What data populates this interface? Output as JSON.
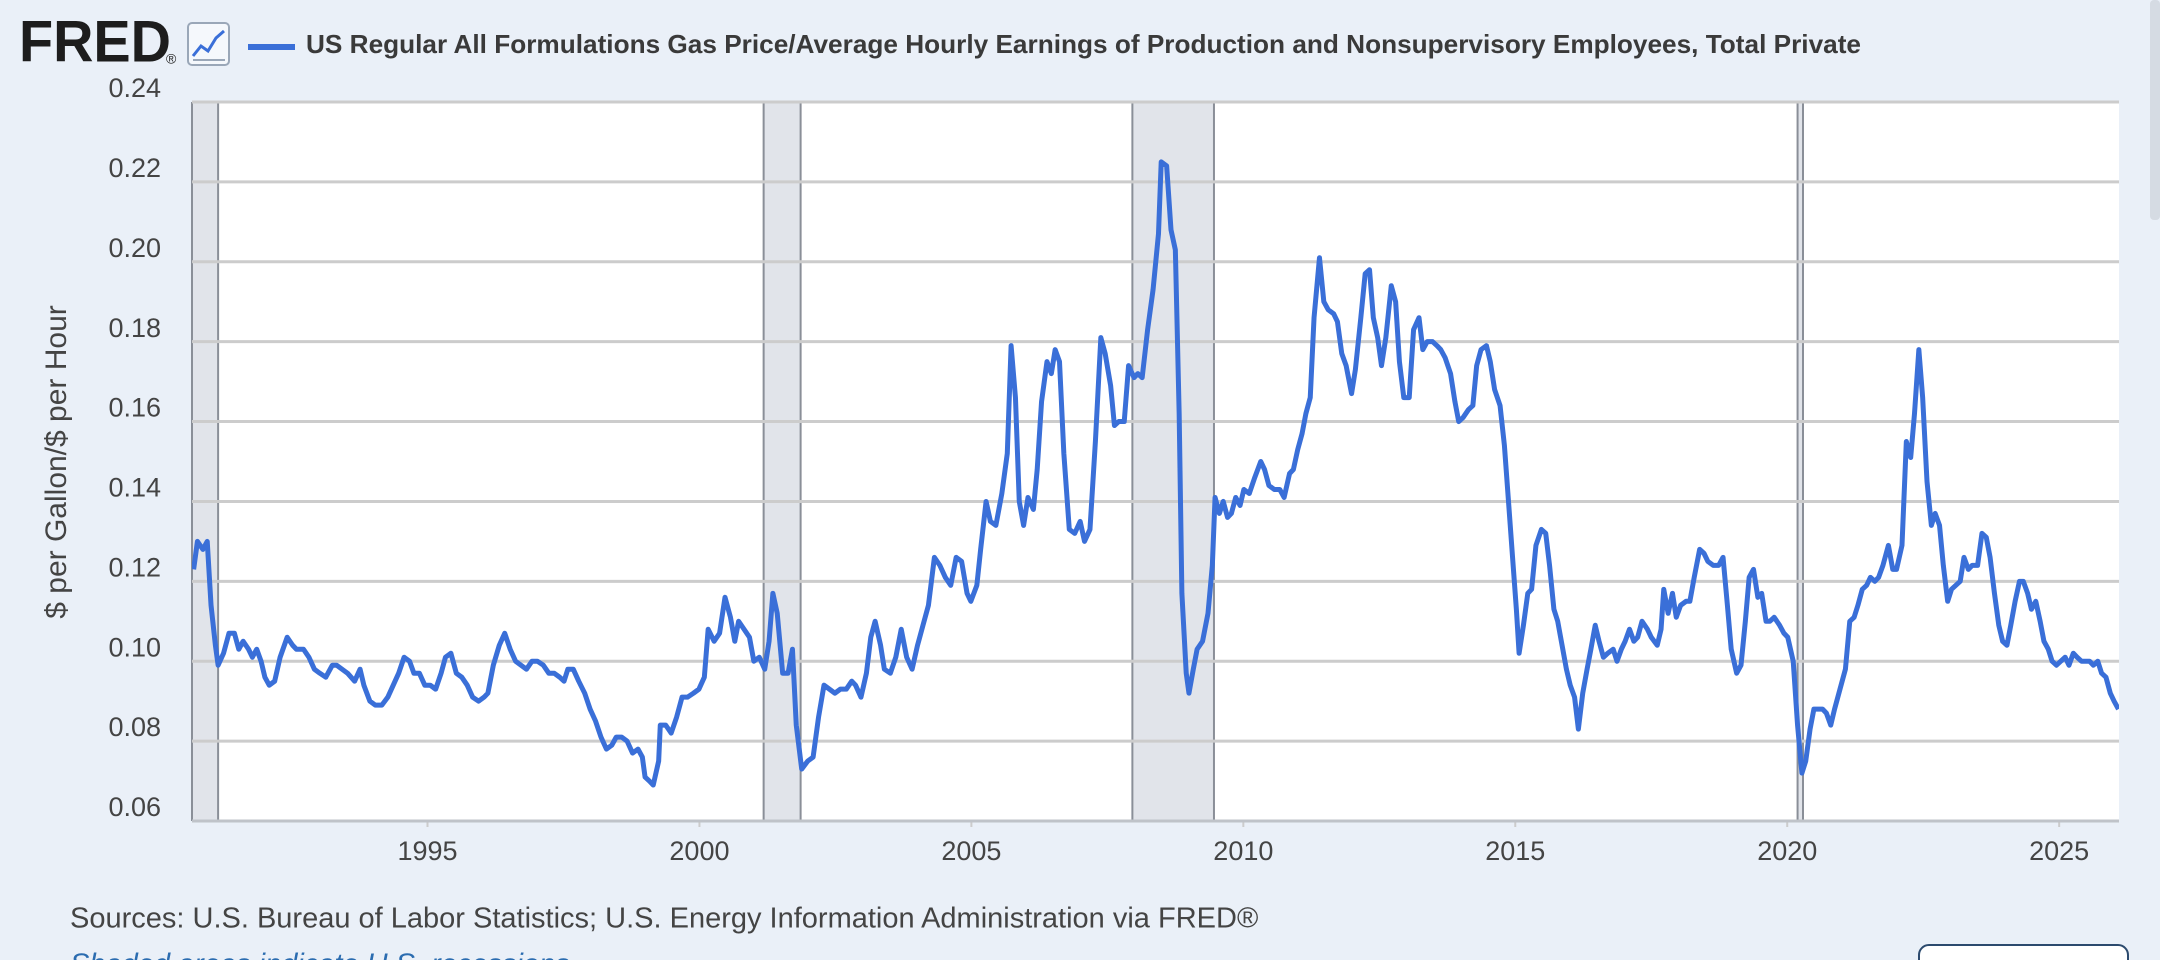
{
  "logo": "FRED",
  "logo_mark": "®",
  "chart_data": {
    "type": "line",
    "y_label": "$ per Gallon/$ per Hour",
    "x": [
      1990.7,
      1990.77,
      1990.87,
      1990.95,
      1991.02,
      1991.1,
      1991.15,
      1991.25,
      1991.35,
      1991.45,
      1991.53,
      1991.61,
      1991.71,
      1991.78,
      1991.86,
      1991.94,
      1992.01,
      1992.09,
      1992.19,
      1992.29,
      1992.42,
      1992.52,
      1992.59,
      1992.72,
      1992.82,
      1992.92,
      1993.02,
      1993.13,
      1993.25,
      1993.33,
      1993.43,
      1993.53,
      1993.66,
      1993.76,
      1993.83,
      1993.94,
      1994.04,
      1994.16,
      1994.27,
      1994.37,
      1994.47,
      1994.57,
      1994.67,
      1994.75,
      1994.85,
      1994.95,
      1995.05,
      1995.15,
      1995.25,
      1995.33,
      1995.43,
      1995.53,
      1995.63,
      1995.73,
      1995.83,
      1995.94,
      1996.04,
      1996.11,
      1996.21,
      1996.32,
      1996.42,
      1996.52,
      1996.62,
      1996.72,
      1996.82,
      1996.92,
      1997.02,
      1997.13,
      1997.23,
      1997.33,
      1997.43,
      1997.51,
      1997.58,
      1997.68,
      1997.78,
      1997.89,
      1997.99,
      1998.09,
      1998.19,
      1998.29,
      1998.39,
      1998.47,
      1998.57,
      1998.67,
      1998.77,
      1998.87,
      1998.95,
      1999.0,
      1999.08,
      1999.15,
      1999.25,
      1999.28,
      1999.38,
      1999.48,
      1999.58,
      1999.68,
      1999.78,
      1999.89,
      1999.99,
      2000.09,
      2000.16,
      2000.27,
      2000.37,
      2000.47,
      2000.57,
      2000.65,
      2000.72,
      2000.82,
      2000.92,
      2001.0,
      2001.1,
      2001.2,
      2001.28,
      2001.35,
      2001.43,
      2001.53,
      2001.63,
      2001.71,
      2001.78,
      2001.88,
      2001.99,
      2002.09,
      2002.19,
      2002.29,
      2002.39,
      2002.49,
      2002.59,
      2002.7,
      2002.8,
      2002.87,
      2002.97,
      2003.07,
      2003.15,
      2003.23,
      2003.33,
      2003.4,
      2003.51,
      2003.61,
      2003.71,
      2003.81,
      2003.91,
      2004.01,
      2004.11,
      2004.21,
      2004.32,
      2004.42,
      2004.52,
      2004.62,
      2004.72,
      2004.82,
      2004.92,
      2004.99,
      2005.1,
      2005.17,
      2005.27,
      2005.35,
      2005.45,
      2005.56,
      2005.66,
      2005.73,
      2005.81,
      2005.88,
      2005.96,
      2006.04,
      2006.14,
      2006.21,
      2006.29,
      2006.39,
      2006.47,
      2006.54,
      2006.62,
      2006.7,
      2006.8,
      2006.9,
      2007.0,
      2007.08,
      2007.18,
      2007.28,
      2007.38,
      2007.46,
      2007.56,
      2007.63,
      2007.71,
      2007.81,
      2007.89,
      2007.99,
      2008.06,
      2008.14,
      2008.24,
      2008.34,
      2008.44,
      2008.49,
      2008.59,
      2008.67,
      2008.75,
      2008.82,
      2008.87,
      2008.95,
      2009.0,
      2009.08,
      2009.15,
      2009.25,
      2009.35,
      2009.43,
      2009.48,
      2009.56,
      2009.63,
      2009.71,
      2009.78,
      2009.86,
      2009.94,
      2010.01,
      2010.11,
      2010.21,
      2010.32,
      2010.39,
      2010.47,
      2010.57,
      2010.67,
      2010.75,
      2010.85,
      2010.92,
      2011.0,
      2011.08,
      2011.15,
      2011.23,
      2011.3,
      2011.4,
      2011.48,
      2011.56,
      2011.66,
      2011.73,
      2011.81,
      2011.89,
      2011.99,
      2012.06,
      2012.16,
      2012.24,
      2012.32,
      2012.39,
      2012.47,
      2012.54,
      2012.62,
      2012.72,
      2012.8,
      2012.87,
      2012.95,
      2013.05,
      2013.13,
      2013.23,
      2013.3,
      2013.38,
      2013.48,
      2013.56,
      2013.63,
      2013.71,
      2013.81,
      2013.89,
      2013.96,
      2014.04,
      2014.14,
      2014.22,
      2014.29,
      2014.37,
      2014.47,
      2014.54,
      2014.62,
      2014.72,
      2014.8,
      2014.87,
      2014.95,
      2015.02,
      2015.07,
      2015.15,
      2015.23,
      2015.3,
      2015.38,
      2015.48,
      2015.56,
      2015.63,
      2015.71,
      2015.78,
      2015.86,
      2015.94,
      2016.01,
      2016.09,
      2016.16,
      2016.24,
      2016.32,
      2016.39,
      2016.47,
      2016.54,
      2016.62,
      2016.7,
      2016.8,
      2016.87,
      2016.95,
      2017.02,
      2017.1,
      2017.18,
      2017.25,
      2017.33,
      2017.43,
      2017.5,
      2017.61,
      2017.68,
      2017.73,
      2017.81,
      2017.89,
      2017.96,
      2018.04,
      2018.14,
      2018.21,
      2018.29,
      2018.39,
      2018.47,
      2018.54,
      2018.64,
      2018.74,
      2018.82,
      2018.9,
      2018.97,
      2019.07,
      2019.15,
      2019.23,
      2019.3,
      2019.38,
      2019.46,
      2019.53,
      2019.61,
      2019.68,
      2019.76,
      2019.86,
      2019.94,
      2020.01,
      2020.11,
      2020.19,
      2020.27,
      2020.34,
      2020.42,
      2020.49,
      2020.57,
      2020.65,
      2020.72,
      2020.8,
      2020.87,
      2020.97,
      2021.07,
      2021.15,
      2021.23,
      2021.3,
      2021.38,
      2021.46,
      2021.53,
      2021.61,
      2021.68,
      2021.76,
      2021.86,
      2021.94,
      2022.01,
      2022.11,
      2022.19,
      2022.27,
      2022.34,
      2022.42,
      2022.49,
      2022.57,
      2022.65,
      2022.72,
      2022.8,
      2022.87,
      2022.95,
      2023.02,
      2023.1,
      2023.18,
      2023.25,
      2023.33,
      2023.4,
      2023.5,
      2023.58,
      2023.66,
      2023.73,
      2023.81,
      2023.89,
      2023.96,
      2024.04,
      2024.11,
      2024.19,
      2024.27,
      2024.34,
      2024.42,
      2024.49,
      2024.57,
      2024.65,
      2024.72,
      2024.8,
      2024.87,
      2024.95,
      2025.03,
      2025.11,
      2025.18,
      2025.26,
      2025.33,
      2025.41,
      2025.48,
      2025.56,
      2025.63,
      2025.71,
      2025.78,
      2025.86,
      2025.94,
      2026.01,
      2026.09
    ],
    "series": [
      {
        "name": "US Regular All Formulations Gas Price/Average Hourly Earnings of Production and Nonsupervisory Employees, Total Private",
        "color": "#3a6fd8",
        "values": [
          0.123,
          0.13,
          0.128,
          0.13,
          0.114,
          0.104,
          0.099,
          0.102,
          0.107,
          0.107,
          0.103,
          0.105,
          0.103,
          0.101,
          0.103,
          0.1,
          0.096,
          0.094,
          0.095,
          0.101,
          0.106,
          0.104,
          0.103,
          0.103,
          0.101,
          0.098,
          0.097,
          0.096,
          0.099,
          0.099,
          0.098,
          0.097,
          0.095,
          0.098,
          0.094,
          0.09,
          0.089,
          0.089,
          0.091,
          0.094,
          0.097,
          0.101,
          0.1,
          0.097,
          0.097,
          0.094,
          0.094,
          0.093,
          0.097,
          0.101,
          0.102,
          0.097,
          0.096,
          0.094,
          0.091,
          0.09,
          0.091,
          0.092,
          0.099,
          0.104,
          0.107,
          0.103,
          0.1,
          0.099,
          0.098,
          0.1,
          0.1,
          0.099,
          0.097,
          0.097,
          0.096,
          0.095,
          0.098,
          0.098,
          0.095,
          0.092,
          0.088,
          0.085,
          0.081,
          0.078,
          0.079,
          0.081,
          0.081,
          0.08,
          0.077,
          0.078,
          0.076,
          0.071,
          0.07,
          0.069,
          0.075,
          0.084,
          0.084,
          0.082,
          0.086,
          0.091,
          0.091,
          0.092,
          0.093,
          0.096,
          0.108,
          0.105,
          0.107,
          0.116,
          0.111,
          0.105,
          0.11,
          0.108,
          0.106,
          0.1,
          0.101,
          0.098,
          0.105,
          0.117,
          0.112,
          0.097,
          0.097,
          0.103,
          0.084,
          0.073,
          0.075,
          0.076,
          0.086,
          0.094,
          0.093,
          0.092,
          0.093,
          0.093,
          0.095,
          0.094,
          0.091,
          0.097,
          0.106,
          0.11,
          0.104,
          0.098,
          0.097,
          0.101,
          0.108,
          0.101,
          0.098,
          0.104,
          0.109,
          0.114,
          0.126,
          0.124,
          0.121,
          0.119,
          0.126,
          0.125,
          0.117,
          0.115,
          0.119,
          0.128,
          0.14,
          0.135,
          0.134,
          0.142,
          0.152,
          0.179,
          0.166,
          0.14,
          0.134,
          0.141,
          0.138,
          0.148,
          0.165,
          0.175,
          0.172,
          0.178,
          0.175,
          0.152,
          0.133,
          0.132,
          0.135,
          0.13,
          0.133,
          0.155,
          0.181,
          0.177,
          0.169,
          0.159,
          0.16,
          0.16,
          0.174,
          0.171,
          0.172,
          0.171,
          0.183,
          0.193,
          0.207,
          0.225,
          0.224,
          0.208,
          0.203,
          0.162,
          0.117,
          0.097,
          0.092,
          0.098,
          0.103,
          0.105,
          0.112,
          0.124,
          0.141,
          0.137,
          0.14,
          0.136,
          0.137,
          0.141,
          0.139,
          0.143,
          0.142,
          0.146,
          0.15,
          0.148,
          0.144,
          0.143,
          0.143,
          0.141,
          0.147,
          0.148,
          0.153,
          0.157,
          0.162,
          0.166,
          0.186,
          0.201,
          0.19,
          0.188,
          0.187,
          0.185,
          0.177,
          0.174,
          0.167,
          0.173,
          0.186,
          0.197,
          0.198,
          0.186,
          0.181,
          0.174,
          0.181,
          0.194,
          0.19,
          0.175,
          0.166,
          0.166,
          0.183,
          0.186,
          0.178,
          0.18,
          0.18,
          0.179,
          0.178,
          0.176,
          0.172,
          0.165,
          0.16,
          0.161,
          0.163,
          0.164,
          0.174,
          0.178,
          0.179,
          0.175,
          0.168,
          0.164,
          0.154,
          0.141,
          0.126,
          0.113,
          0.102,
          0.109,
          0.117,
          0.118,
          0.129,
          0.133,
          0.132,
          0.124,
          0.113,
          0.11,
          0.104,
          0.098,
          0.094,
          0.091,
          0.083,
          0.092,
          0.098,
          0.103,
          0.109,
          0.105,
          0.101,
          0.102,
          0.103,
          0.1,
          0.103,
          0.105,
          0.108,
          0.105,
          0.106,
          0.11,
          0.108,
          0.106,
          0.104,
          0.108,
          0.118,
          0.112,
          0.117,
          0.111,
          0.114,
          0.115,
          0.115,
          0.121,
          0.128,
          0.127,
          0.125,
          0.124,
          0.124,
          0.126,
          0.114,
          0.103,
          0.097,
          0.099,
          0.11,
          0.121,
          0.123,
          0.116,
          0.117,
          0.11,
          0.11,
          0.111,
          0.109,
          0.107,
          0.106,
          0.1,
          0.084,
          0.072,
          0.075,
          0.083,
          0.088,
          0.088,
          0.088,
          0.087,
          0.084,
          0.088,
          0.093,
          0.098,
          0.11,
          0.111,
          0.114,
          0.118,
          0.119,
          0.121,
          0.12,
          0.121,
          0.124,
          0.129,
          0.123,
          0.123,
          0.129,
          0.155,
          0.151,
          0.162,
          0.178,
          0.166,
          0.145,
          0.134,
          0.137,
          0.134,
          0.124,
          0.115,
          0.118,
          0.119,
          0.12,
          0.126,
          0.123,
          0.124,
          0.124,
          0.132,
          0.131,
          0.126,
          0.117,
          0.109,
          0.105,
          0.104,
          0.109,
          0.115,
          0.12,
          0.12,
          0.117,
          0.113,
          0.115,
          0.11,
          0.105,
          0.103,
          0.1,
          0.099,
          0.1,
          0.101,
          0.099,
          0.102,
          0.101,
          0.1,
          0.1,
          0.1,
          0.099,
          0.1,
          0.097,
          0.096,
          0.092,
          0.09,
          0.088
        ]
      }
    ],
    "xlim": [
      1990.67,
      2026.1
    ],
    "ylim": [
      0.06,
      0.24
    ],
    "xticks": [
      1995,
      2000,
      2005,
      2010,
      2015,
      2020,
      2025
    ],
    "yticks": [
      0.06,
      0.08,
      {
        "value": 0.1,
        "label": "0.10"
      },
      0.12,
      0.14,
      0.16,
      0.18,
      {
        "value": 0.2,
        "label": "0.20"
      },
      0.22,
      0.24
    ],
    "grid": true,
    "recessions": [
      [
        1990.67,
        1991.15
      ],
      [
        2001.18,
        2001.86
      ],
      [
        2007.96,
        2009.46
      ],
      [
        2020.19,
        2020.29
      ]
    ],
    "recession_color": "#e1e4ea"
  },
  "sources": "Sources: U.S. Bureau of Labor Statistics; U.S. Energy Information Administration via FRED®",
  "note": "Shaded areas indicate U.S. recessions."
}
